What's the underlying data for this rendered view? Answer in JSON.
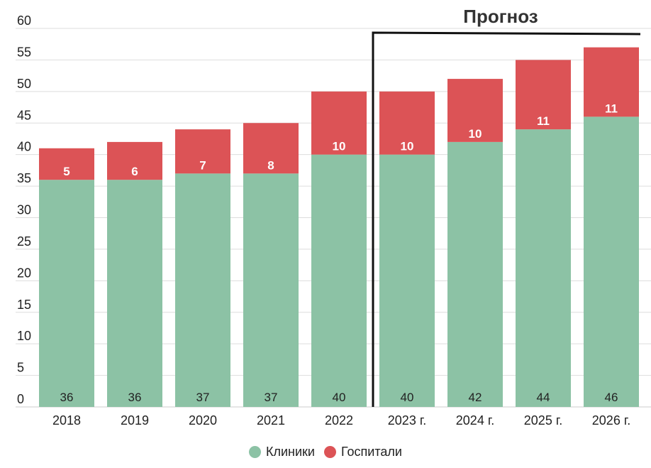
{
  "chart_data": {
    "type": "bar",
    "stacked": true,
    "categories": [
      "2018",
      "2019",
      "2020",
      "2021",
      "2022",
      "2023 г.",
      "2024 г.",
      "2025 г.",
      "2026 г."
    ],
    "series": [
      {
        "name": "Клиники",
        "color": "#8cc2a5",
        "values": [
          36,
          36,
          37,
          37,
          40,
          40,
          42,
          44,
          46
        ]
      },
      {
        "name": "Госпитали",
        "color": "#dc5356",
        "values": [
          5,
          6,
          7,
          8,
          10,
          10,
          10,
          11,
          11
        ]
      }
    ],
    "ylim": [
      0,
      60
    ],
    "yticks": [
      0,
      5,
      10,
      15,
      20,
      25,
      30,
      35,
      40,
      45,
      50,
      55,
      60
    ],
    "grid": true,
    "legend_position": "bottom",
    "annotation": {
      "text": "Прогноз",
      "from_category": "2023 г."
    }
  }
}
